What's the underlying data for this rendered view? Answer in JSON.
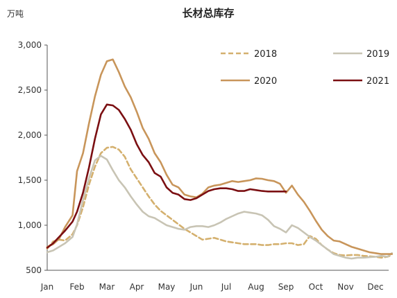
{
  "chart_data": {
    "type": "line",
    "title": "长材总库存",
    "unit_label": "万吨",
    "xlabel": "",
    "ylabel": "",
    "ylim": [
      500,
      3000
    ],
    "y_ticks": [
      500,
      1000,
      1500,
      2000,
      2500,
      3000
    ],
    "y_tick_labels": [
      "500",
      "1,000",
      "1,500",
      "2,000",
      "2,500",
      "3,000"
    ],
    "xlim": [
      0,
      11.55
    ],
    "x_ticks": [
      0,
      1,
      2,
      3,
      4,
      5,
      6,
      7,
      8,
      9,
      10,
      11
    ],
    "x_tick_labels": [
      "Jan",
      "Feb",
      "Mar",
      "Apr",
      "May",
      "Jun",
      "Jul",
      "Aug",
      "Sep",
      "Oct",
      "Nov",
      "Dec"
    ],
    "grid": false,
    "legend_position": "top-right",
    "series": [
      {
        "name": "2018",
        "color": "#d4b06e",
        "dash": "dashed",
        "x": [
          0,
          0.2,
          0.4,
          0.6,
          0.85,
          1.0,
          1.2,
          1.4,
          1.6,
          1.8,
          2.0,
          2.2,
          2.4,
          2.6,
          2.8,
          3.0,
          3.2,
          3.4,
          3.6,
          3.8,
          4.0,
          4.2,
          4.4,
          4.6,
          4.8,
          5.0,
          5.2,
          5.4,
          5.6,
          5.8,
          6.0,
          6.2,
          6.4,
          6.6,
          6.8,
          7.0,
          7.2,
          7.4,
          7.6,
          7.8,
          8.0,
          8.2,
          8.4,
          8.6,
          8.8,
          9.0,
          9.2,
          9.4,
          9.6,
          9.8,
          10.0,
          10.2,
          10.4,
          10.6,
          10.8,
          11.0,
          11.2,
          11.4,
          11.55
        ],
        "values": [
          740,
          820,
          840,
          830,
          900,
          1000,
          1200,
          1450,
          1650,
          1800,
          1860,
          1870,
          1840,
          1760,
          1620,
          1520,
          1420,
          1320,
          1230,
          1160,
          1110,
          1060,
          1010,
          960,
          920,
          880,
          840,
          850,
          860,
          840,
          820,
          810,
          800,
          790,
          790,
          790,
          780,
          780,
          790,
          790,
          800,
          800,
          780,
          790,
          880,
          850,
          780,
          730,
          690,
          670,
          665,
          670,
          670,
          660,
          655,
          650,
          640,
          650,
          670
        ]
      },
      {
        "name": "2019",
        "color": "#c8c4b4",
        "dash": "solid",
        "x": [
          0,
          0.2,
          0.4,
          0.6,
          0.85,
          1.0,
          1.2,
          1.4,
          1.6,
          1.8,
          2.0,
          2.2,
          2.4,
          2.6,
          2.8,
          3.0,
          3.2,
          3.4,
          3.6,
          3.8,
          4.0,
          4.2,
          4.4,
          4.6,
          4.8,
          5.0,
          5.2,
          5.4,
          5.6,
          5.8,
          6.0,
          6.2,
          6.4,
          6.6,
          6.8,
          7.0,
          7.2,
          7.4,
          7.6,
          7.8,
          8.0,
          8.2,
          8.4,
          8.6,
          8.8,
          9.0,
          9.2,
          9.4,
          9.6,
          9.8,
          10.0,
          10.2,
          10.4,
          10.6,
          10.8,
          11.0,
          11.2,
          11.4,
          11.55
        ],
        "values": [
          700,
          720,
          760,
          800,
          870,
          1010,
          1280,
          1520,
          1720,
          1770,
          1730,
          1610,
          1500,
          1420,
          1320,
          1230,
          1150,
          1100,
          1080,
          1040,
          1000,
          980,
          960,
          950,
          980,
          990,
          990,
          980,
          1000,
          1030,
          1070,
          1100,
          1130,
          1150,
          1140,
          1130,
          1110,
          1060,
          990,
          960,
          920,
          1000,
          970,
          920,
          870,
          830,
          780,
          730,
          680,
          660,
          640,
          630,
          640,
          640,
          645,
          650,
          660,
          650,
          690
        ]
      },
      {
        "name": "2020",
        "color": "#c8955a",
        "dash": "solid",
        "x": [
          0,
          0.2,
          0.4,
          0.6,
          0.85,
          1.0,
          1.2,
          1.4,
          1.6,
          1.8,
          2.0,
          2.2,
          2.4,
          2.6,
          2.8,
          3.0,
          3.2,
          3.4,
          3.6,
          3.8,
          4.0,
          4.2,
          4.4,
          4.6,
          4.8,
          5.0,
          5.2,
          5.4,
          5.6,
          5.8,
          6.0,
          6.2,
          6.4,
          6.6,
          6.8,
          7.0,
          7.2,
          7.4,
          7.6,
          7.8,
          8.0,
          8.2,
          8.4,
          8.6,
          8.8,
          9.0,
          9.2,
          9.4,
          9.6,
          9.8,
          10.0,
          10.2,
          10.4,
          10.6,
          10.8,
          11.0,
          11.2,
          11.4,
          11.55
        ],
        "values": [
          760,
          790,
          850,
          980,
          1110,
          1600,
          1800,
          2130,
          2430,
          2670,
          2820,
          2840,
          2700,
          2540,
          2420,
          2260,
          2080,
          1960,
          1800,
          1700,
          1560,
          1450,
          1420,
          1340,
          1320,
          1310,
          1350,
          1420,
          1440,
          1450,
          1470,
          1490,
          1480,
          1490,
          1500,
          1520,
          1515,
          1500,
          1490,
          1460,
          1360,
          1440,
          1340,
          1260,
          1160,
          1050,
          950,
          880,
          830,
          820,
          790,
          760,
          740,
          720,
          700,
          690,
          680,
          680,
          680
        ]
      },
      {
        "name": "2021",
        "color": "#7b0f12",
        "dash": "solid",
        "x": [
          0,
          0.2,
          0.4,
          0.6,
          0.85,
          1.0,
          1.2,
          1.4,
          1.6,
          1.8,
          2.0,
          2.2,
          2.4,
          2.6,
          2.8,
          3.0,
          3.2,
          3.4,
          3.6,
          3.8,
          4.0,
          4.2,
          4.4,
          4.6,
          4.8,
          5.0,
          5.2,
          5.4,
          5.6,
          5.8,
          6.0,
          6.2,
          6.4,
          6.6,
          6.8,
          7.0,
          7.2,
          7.4,
          7.6,
          7.8,
          8.0
        ],
        "values": [
          750,
          800,
          870,
          940,
          1040,
          1150,
          1360,
          1640,
          1960,
          2230,
          2340,
          2330,
          2280,
          2180,
          2060,
          1900,
          1780,
          1700,
          1580,
          1540,
          1420,
          1360,
          1340,
          1290,
          1280,
          1300,
          1340,
          1380,
          1400,
          1410,
          1410,
          1400,
          1380,
          1380,
          1400,
          1390,
          1380,
          1375,
          1375,
          1375,
          1375
        ]
      }
    ]
  }
}
